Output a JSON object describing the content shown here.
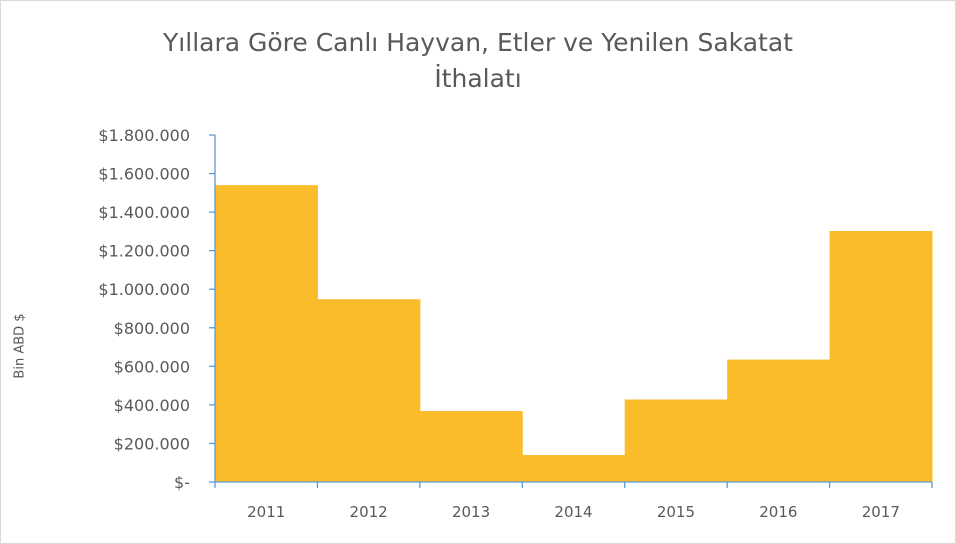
{
  "chart_data": {
    "type": "bar",
    "title_line1": "Yıllara Göre Canlı Hayvan, Etler ve Yenilen Sakatat",
    "title_line2": "İthalatı",
    "ylabel": "Bin ABD $",
    "xlabel": "",
    "categories": [
      "2011",
      "2012",
      "2013",
      "2014",
      "2015",
      "2016",
      "2017"
    ],
    "values": [
      1540000,
      948000,
      368000,
      140000,
      428000,
      635000,
      1302000
    ],
    "ylim": [
      0,
      1800000
    ],
    "yticks": [
      {
        "value": 0,
        "label": "$-"
      },
      {
        "value": 200000,
        "label": "$200.000"
      },
      {
        "value": 400000,
        "label": "$400.000"
      },
      {
        "value": 600000,
        "label": "$600.000"
      },
      {
        "value": 800000,
        "label": "$800.000"
      },
      {
        "value": 1000000,
        "label": "$1.000.000"
      },
      {
        "value": 1200000,
        "label": "$1.200.000"
      },
      {
        "value": 1400000,
        "label": "$1.400.000"
      },
      {
        "value": 1600000,
        "label": "$1.600.000"
      },
      {
        "value": 1800000,
        "label": "$1.800.000"
      }
    ],
    "bar_color": "#fbbc2c",
    "axis_color": "#5b9bd5",
    "grid": false,
    "legend": "none"
  }
}
